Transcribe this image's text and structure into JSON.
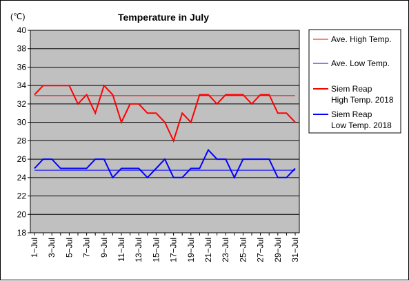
{
  "chart_data": {
    "type": "line",
    "title": "Temperature in July",
    "ylabel": "(℃)",
    "xlabel": "",
    "ylim": [
      18,
      40
    ],
    "ytick_step": 2,
    "grid": true,
    "legend_position": "right",
    "plot_background": "#c0c0c0",
    "x": [
      1,
      2,
      3,
      4,
      5,
      6,
      7,
      8,
      9,
      10,
      11,
      12,
      13,
      14,
      15,
      16,
      17,
      18,
      19,
      20,
      21,
      22,
      23,
      24,
      25,
      26,
      27,
      28,
      29,
      30,
      31
    ],
    "x_tick_labels": [
      "1−Jul",
      "3−Jul",
      "5−Jul",
      "7−Jul",
      "9−Jul",
      "11−Jul",
      "13−Jul",
      "15−Jul",
      "17−Jul",
      "19−Jul",
      "21−Jul",
      "23−Jul",
      "25−Jul",
      "27−Jul",
      "29−Jul",
      "31−Jul"
    ],
    "x_tick_days": [
      1,
      3,
      5,
      7,
      9,
      11,
      13,
      15,
      17,
      19,
      21,
      23,
      25,
      27,
      29,
      31
    ],
    "series": [
      {
        "name": "Ave. High Temp.",
        "color": "#ff0000",
        "width": 1,
        "values": [
          32.9,
          32.9,
          32.9,
          32.9,
          32.9,
          32.9,
          32.9,
          32.9,
          32.9,
          32.9,
          32.9,
          32.9,
          32.9,
          32.9,
          32.9,
          32.9,
          32.9,
          32.9,
          32.9,
          32.9,
          32.9,
          32.9,
          32.9,
          32.9,
          32.9,
          32.9,
          32.9,
          32.9,
          32.9,
          32.9,
          32.9
        ]
      },
      {
        "name": "Ave. Low Temp.",
        "color": "#0000ff",
        "width": 1,
        "values": [
          24.8,
          24.8,
          24.8,
          24.8,
          24.8,
          24.8,
          24.8,
          24.8,
          24.8,
          24.8,
          24.8,
          24.8,
          24.8,
          24.8,
          24.8,
          24.8,
          24.8,
          24.8,
          24.8,
          24.8,
          24.8,
          24.8,
          24.8,
          24.8,
          24.8,
          24.8,
          24.8,
          24.8,
          24.8,
          24.8,
          24.8
        ]
      },
      {
        "name": "Siem Reap\nHigh Temp. 2018",
        "color": "#ff0000",
        "width": 2,
        "values": [
          33,
          34,
          34,
          34,
          34,
          32,
          33,
          31,
          34,
          33,
          30,
          32,
          32,
          31,
          31,
          30,
          28,
          31,
          30,
          33,
          33,
          32,
          33,
          33,
          33,
          32,
          33,
          33,
          31,
          31,
          30
        ]
      },
      {
        "name": "Siem Reap\nLow Temp. 2018",
        "color": "#0000ff",
        "width": 2,
        "values": [
          25,
          26,
          26,
          25,
          25,
          25,
          25,
          26,
          26,
          24,
          25,
          25,
          25,
          24,
          25,
          26,
          24,
          24,
          25,
          25,
          27,
          26,
          26,
          24,
          26,
          26,
          26,
          26,
          24,
          24,
          25
        ]
      }
    ]
  }
}
